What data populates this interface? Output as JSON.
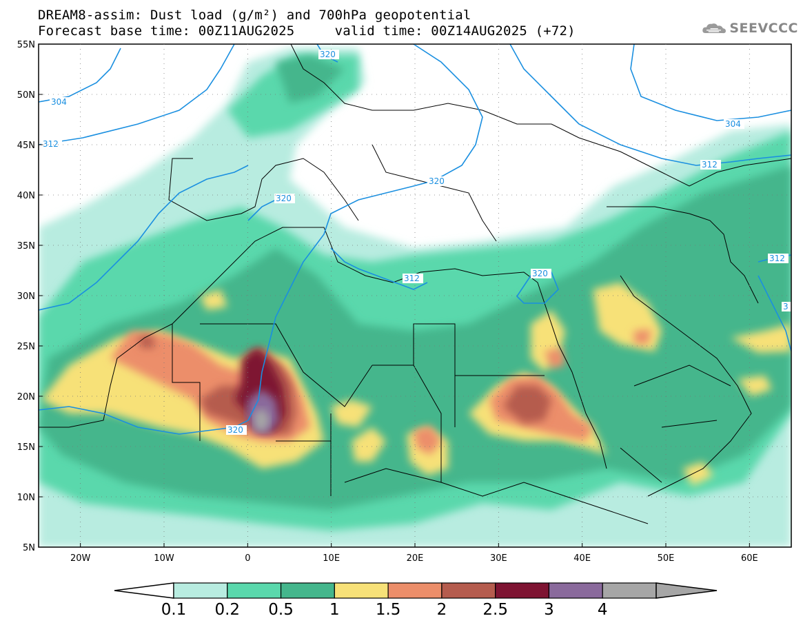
{
  "title": {
    "line1": "DREAM8-assim: Dust load (g/m²) and 700hPa geopotential",
    "line2": "Forecast base time: 00Z11AUG2025     valid time: 00Z14AUG2025 (+72)"
  },
  "logo": {
    "text": "SEEVCCC",
    "icon": "cloud-icon"
  },
  "axes": {
    "lat_labels": [
      "55N",
      "50N",
      "45N",
      "40N",
      "35N",
      "30N",
      "25N",
      "20N",
      "15N",
      "10N",
      "5N"
    ],
    "lon_labels": [
      "20W",
      "10W",
      "0",
      "10E",
      "20E",
      "30E",
      "40E",
      "50E",
      "60E"
    ],
    "lat_range": [
      5,
      55
    ],
    "lon_range": [
      -25,
      65
    ]
  },
  "colorbar": {
    "labels": [
      "0.1",
      "0.2",
      "0.5",
      "1",
      "1.5",
      "2",
      "2.5",
      "3",
      "4"
    ],
    "colors": [
      "#b8ece0",
      "#5ad8ac",
      "#44b68c",
      "#f7e178",
      "#ec8e6a",
      "#b55c4e",
      "#7e1432",
      "#8a6a9c",
      "#a6a6a6"
    ]
  },
  "contours": {
    "color": "#1a8fe0",
    "labels": [
      "304",
      "312",
      "320",
      "304",
      "312",
      "320",
      "320",
      "312",
      "320",
      "312",
      "320",
      "304",
      "312",
      "312",
      "3"
    ]
  }
}
